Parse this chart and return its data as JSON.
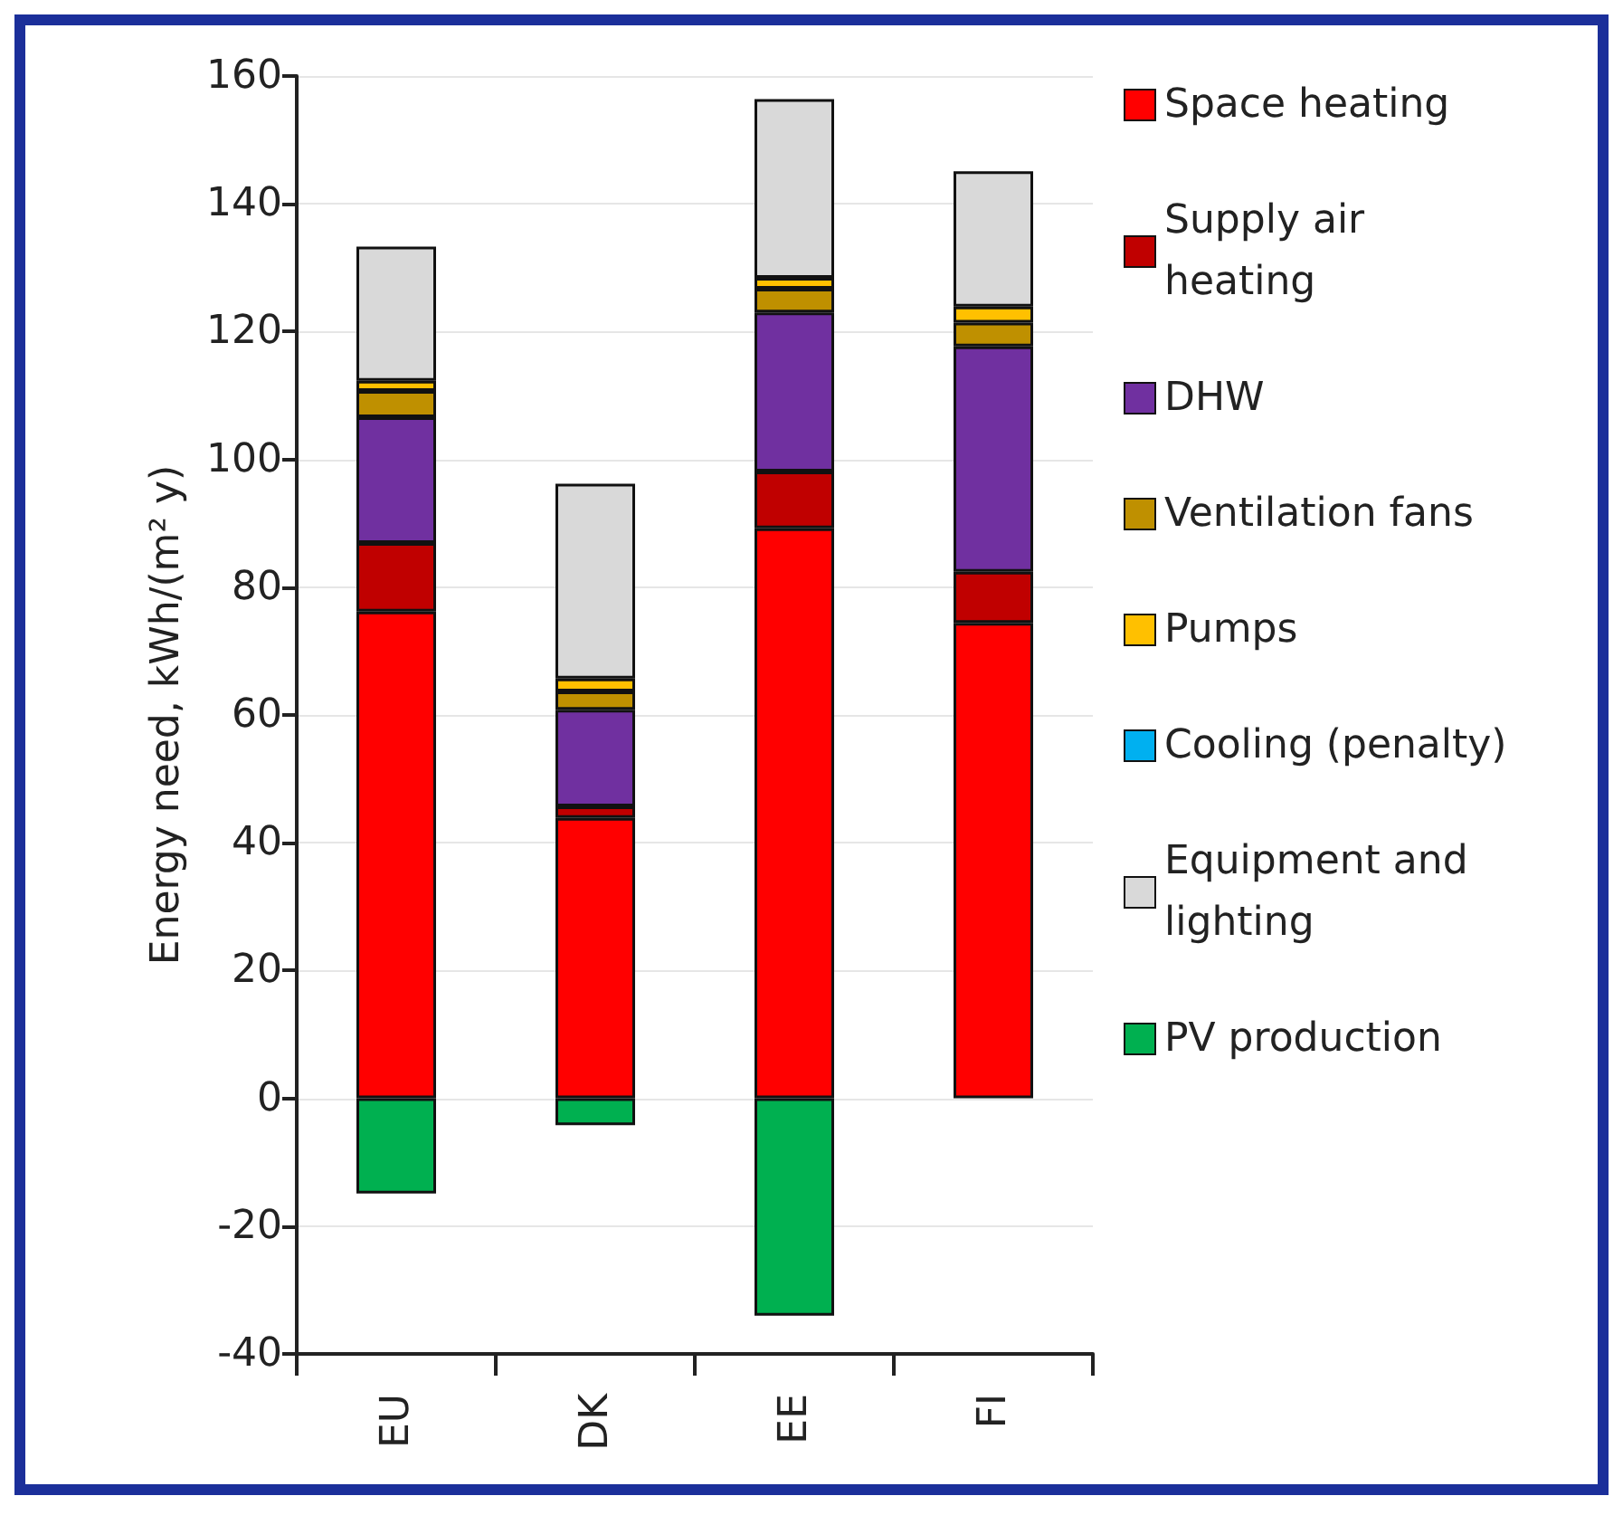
{
  "chart_data": {
    "type": "bar",
    "stacked": true,
    "ylabel": "Energy need, kWh/(m² y)",
    "categories": [
      "EU",
      "DK",
      "EE",
      "FI"
    ],
    "ylim": [
      -40,
      160
    ],
    "yticks": [
      -40,
      -20,
      0,
      20,
      40,
      60,
      80,
      100,
      120,
      140,
      160
    ],
    "grid": "y",
    "legend": "right",
    "series": [
      {
        "name": "Space heating",
        "color": "#ff0000",
        "values": [
          76.2,
          43.9,
          89.2,
          74.4
        ]
      },
      {
        "name": "Supply air heating",
        "color": "#c00000",
        "values": [
          10.7,
          1.8,
          8.9,
          8.0
        ]
      },
      {
        "name": "DHW",
        "color": "#7030a0",
        "values": [
          19.7,
          15.1,
          24.9,
          35.3
        ]
      },
      {
        "name": "Ventilation fans",
        "color": "#bf9000",
        "values": [
          4.1,
          2.9,
          3.7,
          3.7
        ]
      },
      {
        "name": "Pumps",
        "color": "#ffc000",
        "values": [
          1.6,
          2.0,
          1.7,
          2.5
        ]
      },
      {
        "name": "Cooling (penalty)",
        "color": "#00b0f0",
        "values": [
          0,
          0,
          0,
          0
        ]
      },
      {
        "name": "Equipment and lighting",
        "color": "#d9d9d9",
        "values": [
          21.0,
          30.5,
          28.0,
          21.2
        ]
      },
      {
        "name": "PV production",
        "color": "#00b050",
        "values": [
          -14.9,
          -4.2,
          -34.0,
          0
        ]
      }
    ]
  }
}
